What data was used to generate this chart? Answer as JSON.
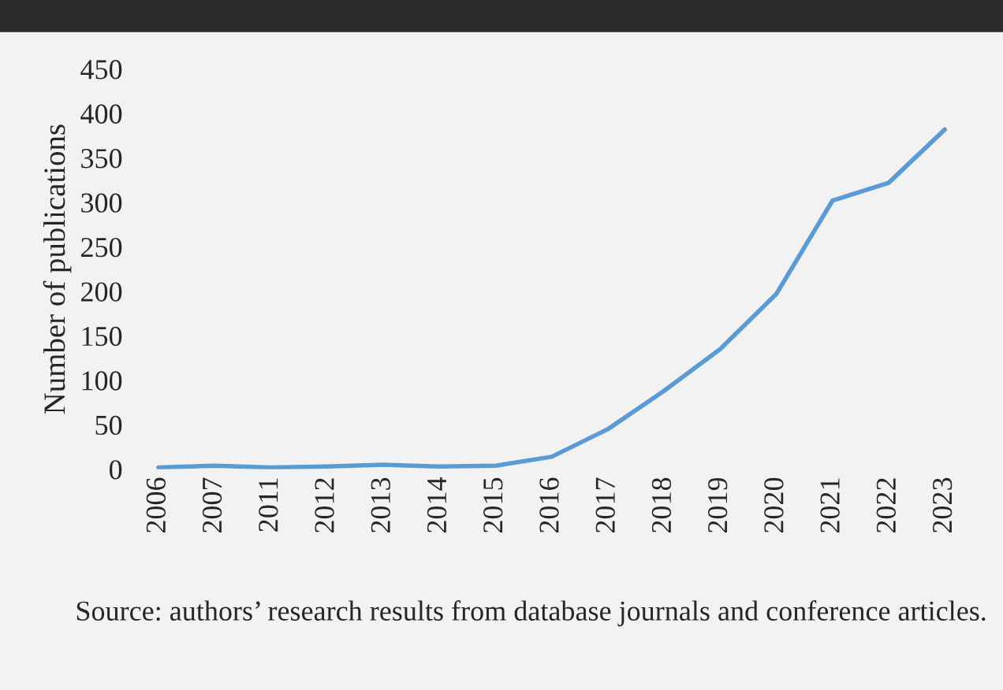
{
  "chart_data": {
    "type": "line",
    "ylabel": "Number of publications",
    "categories": [
      "2006",
      "2007",
      "2011",
      "2012",
      "2013",
      "2014",
      "2015",
      "2016",
      "2017",
      "2018",
      "2019",
      "2020",
      "2021",
      "2022",
      "2023"
    ],
    "series": [
      {
        "color": "#5b9bd5",
        "values": [
          2,
          4,
          2,
          3,
          5,
          3,
          4,
          14,
          45,
          88,
          135,
          197,
          302,
          322,
          382
        ]
      }
    ],
    "ylim": [
      0,
      450
    ],
    "yticks": [
      0,
      50,
      100,
      150,
      200,
      250,
      300,
      350,
      400,
      450
    ],
    "grid": false,
    "legend": false,
    "annotations": [
      "Source: authors’ research results from database journals and conference articles."
    ]
  }
}
